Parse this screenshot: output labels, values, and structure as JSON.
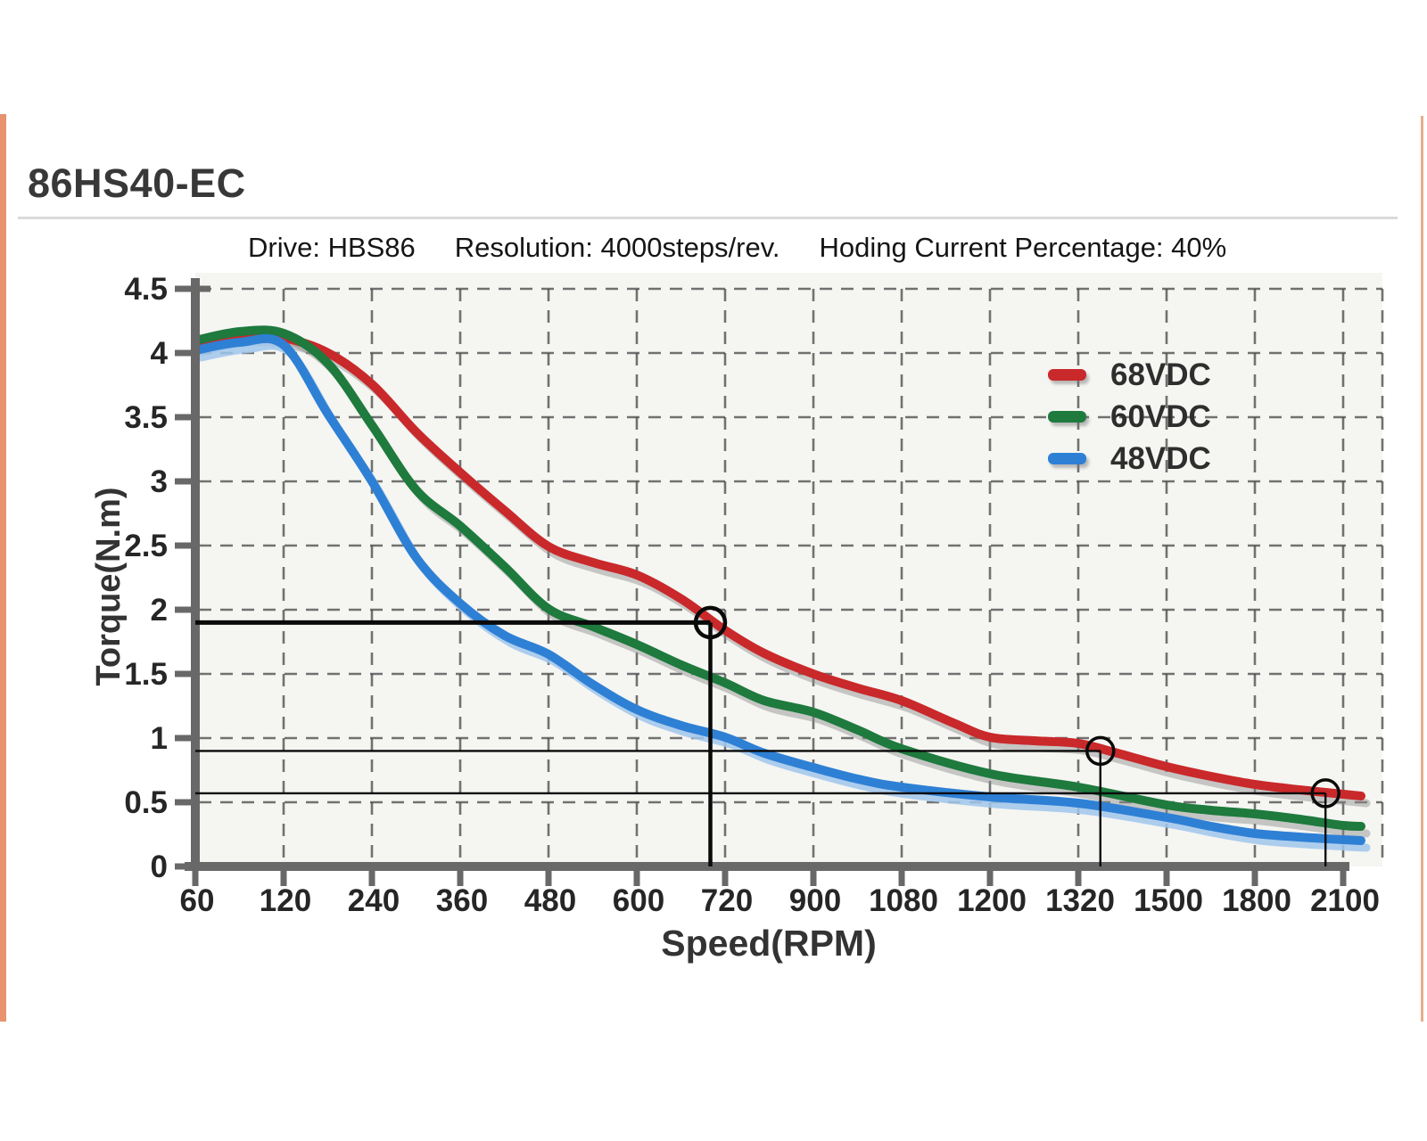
{
  "page": {
    "title": "86HS40-EC"
  },
  "subtitle": {
    "drive": "Drive: HBS86",
    "resolution": "Resolution: 4000steps/rev.",
    "holding": "Hoding Current Percentage: 40%"
  },
  "colors": {
    "accent_left_bar": "#e89270",
    "accent_right_line": "#e7ad8c",
    "divider": "#dadada",
    "axis": "#686868",
    "grid": "#4d4d4d",
    "panel": "#f5f5f2",
    "tick_text": "#262626",
    "annotation": "#0a0a0a"
  },
  "chart_data": {
    "type": "line",
    "title": "86HS40-EC",
    "subtitle": "Drive: HBS86  Resolution: 4000steps/rev.  Hoding Current Percentage: 40%",
    "xlabel": "Speed(RPM)",
    "ylabel": "Torque(N.m)",
    "x_ticks": [
      60,
      120,
      240,
      360,
      480,
      600,
      720,
      900,
      1080,
      1200,
      1320,
      1500,
      1800,
      2100
    ],
    "y_ticks": [
      0,
      0.5,
      1,
      1.5,
      2,
      2.5,
      3,
      3.5,
      4,
      4.5
    ],
    "ylim": [
      0,
      4.5
    ],
    "x_scale_note": "ticks evenly spaced (categorical pixel spacing, non-linear RPM)",
    "grid": "dashed both axes",
    "legend_position": "upper right",
    "series": [
      {
        "name": "68VDC",
        "color": "#c9292a",
        "shadow": "rgba(140,140,140,0.45)",
        "points": [
          [
            60,
            4.06
          ],
          [
            90,
            4.14
          ],
          [
            120,
            4.12
          ],
          [
            180,
            4.0
          ],
          [
            240,
            3.76
          ],
          [
            300,
            3.38
          ],
          [
            360,
            3.07
          ],
          [
            420,
            2.77
          ],
          [
            480,
            2.49
          ],
          [
            540,
            2.37
          ],
          [
            600,
            2.27
          ],
          [
            660,
            2.08
          ],
          [
            720,
            1.84
          ],
          [
            800,
            1.66
          ],
          [
            900,
            1.5
          ],
          [
            990,
            1.39
          ],
          [
            1080,
            1.29
          ],
          [
            1150,
            1.12
          ],
          [
            1200,
            1.01
          ],
          [
            1260,
            0.98
          ],
          [
            1320,
            0.96
          ],
          [
            1400,
            0.88
          ],
          [
            1500,
            0.78
          ],
          [
            1650,
            0.7
          ],
          [
            1800,
            0.64
          ],
          [
            1950,
            0.6
          ],
          [
            2100,
            0.56
          ],
          [
            2160,
            0.55
          ]
        ]
      },
      {
        "name": "60VDC",
        "color": "#1e7a3d",
        "shadow": "rgba(140,140,140,0.45)",
        "points": [
          [
            60,
            4.1
          ],
          [
            90,
            4.17
          ],
          [
            120,
            4.15
          ],
          [
            180,
            3.92
          ],
          [
            240,
            3.44
          ],
          [
            300,
            2.93
          ],
          [
            360,
            2.65
          ],
          [
            420,
            2.33
          ],
          [
            480,
            2.01
          ],
          [
            540,
            1.87
          ],
          [
            600,
            1.73
          ],
          [
            660,
            1.57
          ],
          [
            720,
            1.43
          ],
          [
            800,
            1.29
          ],
          [
            900,
            1.2
          ],
          [
            990,
            1.06
          ],
          [
            1080,
            0.92
          ],
          [
            1200,
            0.72
          ],
          [
            1320,
            0.62
          ],
          [
            1500,
            0.48
          ],
          [
            1650,
            0.44
          ],
          [
            1800,
            0.41
          ],
          [
            1950,
            0.37
          ],
          [
            2100,
            0.32
          ],
          [
            2160,
            0.31
          ]
        ]
      },
      {
        "name": "48VDC",
        "color": "#2e80d5",
        "shadow": "rgba(160,198,236,0.85)",
        "points": [
          [
            60,
            4.02
          ],
          [
            90,
            4.08
          ],
          [
            120,
            4.06
          ],
          [
            180,
            3.52
          ],
          [
            240,
            3.0
          ],
          [
            300,
            2.4
          ],
          [
            360,
            2.05
          ],
          [
            420,
            1.8
          ],
          [
            480,
            1.65
          ],
          [
            540,
            1.42
          ],
          [
            600,
            1.22
          ],
          [
            660,
            1.1
          ],
          [
            720,
            1.01
          ],
          [
            800,
            0.88
          ],
          [
            900,
            0.77
          ],
          [
            990,
            0.68
          ],
          [
            1080,
            0.62
          ],
          [
            1200,
            0.54
          ],
          [
            1320,
            0.49
          ],
          [
            1500,
            0.38
          ],
          [
            1650,
            0.31
          ],
          [
            1800,
            0.26
          ],
          [
            1950,
            0.23
          ],
          [
            2100,
            0.21
          ],
          [
            2160,
            0.2
          ]
        ]
      }
    ],
    "annotations": [
      {
        "rpm": 700,
        "torque": 1.9,
        "style": "bold"
      },
      {
        "rpm": 1365,
        "torque": 0.9,
        "style": "thin"
      },
      {
        "rpm": 2040,
        "torque": 0.57,
        "style": "thin"
      }
    ]
  }
}
